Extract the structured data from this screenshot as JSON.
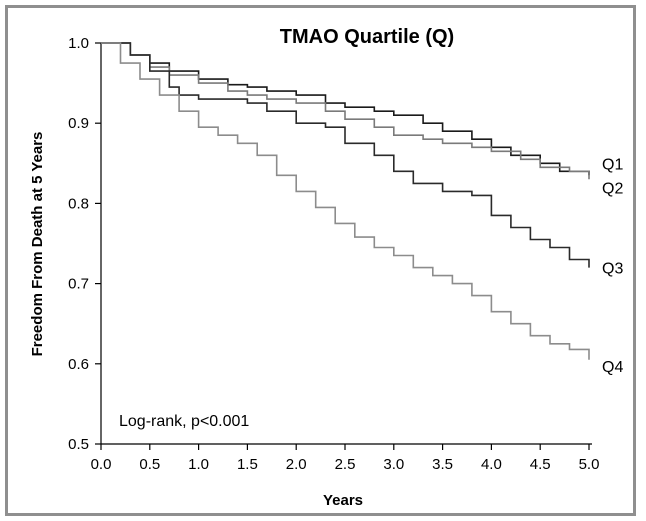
{
  "chart_data": {
    "type": "line",
    "title": "TMAO Quartile (Q)",
    "xlabel": "Years",
    "ylabel": "Freedom From Death at 5 Years",
    "xlim": [
      0,
      5
    ],
    "ylim": [
      0.5,
      1.0
    ],
    "xticks": [
      "0.0",
      "0.5",
      "1.0",
      "1.5",
      "2.0",
      "2.5",
      "3.0",
      "3.5",
      "4.0",
      "4.5",
      "5.0"
    ],
    "yticks": [
      "0.5",
      "0.6",
      "0.7",
      "0.8",
      "0.9",
      "1.0"
    ],
    "grid": false,
    "annotation": "Log-rank, p<0.001",
    "series": [
      {
        "name": "Q1",
        "color": "#1a1a1a",
        "x": [
          0.0,
          0.3,
          0.5,
          0.7,
          1.0,
          1.3,
          1.5,
          1.7,
          2.0,
          2.3,
          2.5,
          2.8,
          3.0,
          3.3,
          3.5,
          3.8,
          4.0,
          4.2,
          4.5,
          4.7,
          5.0
        ],
        "y": [
          1.0,
          0.985,
          0.975,
          0.965,
          0.955,
          0.948,
          0.945,
          0.94,
          0.935,
          0.925,
          0.92,
          0.915,
          0.91,
          0.9,
          0.89,
          0.88,
          0.87,
          0.86,
          0.85,
          0.84,
          0.835
        ]
      },
      {
        "name": "Q2",
        "color": "#7a7a7a",
        "x": [
          0.0,
          0.3,
          0.5,
          0.7,
          1.0,
          1.3,
          1.5,
          1.7,
          2.0,
          2.3,
          2.5,
          2.8,
          3.0,
          3.3,
          3.5,
          3.8,
          4.0,
          4.3,
          4.5,
          4.8,
          5.0
        ],
        "y": [
          1.0,
          0.985,
          0.97,
          0.96,
          0.95,
          0.94,
          0.935,
          0.93,
          0.925,
          0.915,
          0.905,
          0.895,
          0.885,
          0.88,
          0.875,
          0.87,
          0.865,
          0.855,
          0.845,
          0.84,
          0.83
        ]
      },
      {
        "name": "Q3",
        "color": "#2a2a2a",
        "x": [
          0.0,
          0.3,
          0.5,
          0.7,
          0.8,
          1.0,
          1.3,
          1.5,
          1.7,
          2.0,
          2.3,
          2.5,
          2.8,
          3.0,
          3.2,
          3.5,
          3.8,
          4.0,
          4.2,
          4.4,
          4.6,
          4.8,
          5.0
        ],
        "y": [
          1.0,
          0.985,
          0.965,
          0.945,
          0.935,
          0.93,
          0.93,
          0.925,
          0.915,
          0.9,
          0.895,
          0.875,
          0.86,
          0.84,
          0.825,
          0.815,
          0.81,
          0.785,
          0.77,
          0.755,
          0.745,
          0.73,
          0.72
        ]
      },
      {
        "name": "Q4",
        "color": "#8c8c8c",
        "x": [
          0.0,
          0.2,
          0.4,
          0.6,
          0.8,
          1.0,
          1.2,
          1.4,
          1.6,
          1.8,
          2.0,
          2.2,
          2.4,
          2.6,
          2.8,
          3.0,
          3.2,
          3.4,
          3.6,
          3.8,
          4.0,
          4.2,
          4.4,
          4.6,
          4.8,
          5.0
        ],
        "y": [
          1.0,
          0.975,
          0.955,
          0.935,
          0.915,
          0.895,
          0.885,
          0.875,
          0.86,
          0.835,
          0.815,
          0.795,
          0.775,
          0.758,
          0.745,
          0.735,
          0.72,
          0.71,
          0.7,
          0.685,
          0.665,
          0.65,
          0.635,
          0.625,
          0.618,
          0.605
        ]
      }
    ]
  }
}
